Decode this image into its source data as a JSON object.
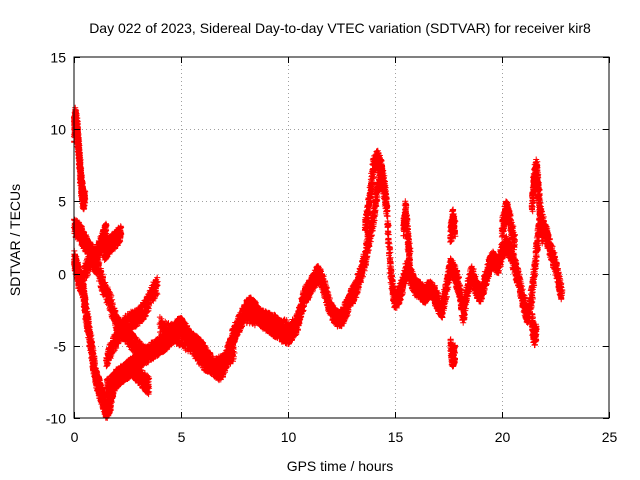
{
  "chart_data": {
    "type": "scatter",
    "title": "Day 022 of 2023, Sidereal Day-to-day VTEC variation (SDTVAR) for receiver kir8",
    "xlabel": "GPS time / hours",
    "ylabel": "SDTVAR / TECUs",
    "xlim": [
      0,
      25
    ],
    "ylim": [
      -10,
      15
    ],
    "xticks": [
      0,
      5,
      10,
      15,
      20,
      25
    ],
    "yticks": [
      -10,
      -5,
      0,
      5,
      10,
      15
    ],
    "grid": true,
    "marker": "+",
    "color": "#ff0000",
    "series": [
      {
        "name": "SDTVAR",
        "tracks": [
          {
            "x": [
              0.0,
              0.1,
              0.2,
              0.3,
              0.4,
              0.5,
              0.6,
              0.7,
              0.8,
              0.9,
              1.0,
              1.1,
              1.2,
              1.3,
              1.4,
              1.5,
              1.6,
              1.7,
              1.8,
              1.9,
              2.0,
              2.2,
              2.4,
              2.6,
              2.8,
              3.0,
              3.2,
              3.4,
              3.6,
              3.8,
              4.0,
              4.2,
              4.4,
              4.6,
              4.8,
              5.0,
              5.2,
              5.4,
              5.6,
              5.8,
              6.0,
              6.2,
              6.4,
              6.6,
              6.8,
              7.0,
              7.2,
              7.4,
              7.6,
              7.8,
              8.0,
              8.2,
              8.4,
              8.6,
              8.8,
              9.0,
              9.2,
              9.4,
              9.6,
              9.8,
              10.0,
              10.2,
              10.4,
              10.6,
              10.8,
              11.0,
              11.2,
              11.4,
              11.6,
              11.8,
              12.0,
              12.2,
              12.4,
              12.6,
              12.8,
              13.0,
              13.2,
              13.4,
              13.6,
              13.8,
              14.0,
              14.2,
              14.4,
              14.6,
              14.8,
              15.0,
              15.2,
              15.4,
              15.6,
              15.8,
              16.0,
              16.2,
              16.4,
              16.6,
              16.8,
              17.0,
              17.2,
              17.4,
              17.6,
              17.8,
              18.0,
              18.2,
              18.4,
              18.6,
              18.8,
              19.0,
              19.2,
              19.4,
              19.6,
              19.8,
              20.0,
              20.2,
              20.4,
              20.6,
              20.8,
              21.0,
              21.2,
              21.4,
              21.6,
              21.8,
              22.0,
              22.2,
              22.4,
              22.6,
              22.8
            ],
            "y": [
              1.0,
              0.5,
              0.0,
              -0.5,
              -1.0,
              -2.0,
              -3.0,
              -4.0,
              -5.0,
              -6.0,
              -7.0,
              -7.5,
              -8.0,
              -8.5,
              -9.0,
              -9.5,
              -9.3,
              -8.8,
              -8.0,
              -7.5,
              -7.2,
              -7.0,
              -6.8,
              -6.5,
              -6.3,
              -6.0,
              -5.8,
              -5.6,
              -5.4,
              -5.2,
              -5.0,
              -4.8,
              -4.6,
              -4.2,
              -3.8,
              -3.6,
              -4.0,
              -4.5,
              -4.8,
              -5.0,
              -5.3,
              -5.8,
              -6.2,
              -6.6,
              -6.8,
              -6.5,
              -5.5,
              -4.5,
              -3.8,
              -3.2,
              -2.5,
              -2.2,
              -2.4,
              -2.8,
              -3.2,
              -3.4,
              -3.6,
              -3.8,
              -4.0,
              -4.2,
              -4.3,
              -4.0,
              -3.5,
              -2.5,
              -1.5,
              -1.0,
              -0.5,
              0.0,
              -0.5,
              -1.5,
              -2.5,
              -3.0,
              -3.2,
              -2.8,
              -2.2,
              -1.5,
              -1.0,
              0.0,
              1.0,
              2.5,
              4.0,
              6.0,
              7.0,
              5.0,
              0.0,
              -2.0,
              -1.5,
              -0.5,
              0.5,
              -0.5,
              -1.0,
              -1.2,
              -1.5,
              -1.0,
              -1.3,
              -2.0,
              -2.5,
              -1.0,
              0.5,
              0.0,
              -1.0,
              -3.0,
              -1.0,
              0.0,
              -1.0,
              -1.5,
              -0.5,
              0.5,
              1.0,
              0.5,
              1.5,
              2.0,
              1.5,
              0.5,
              -0.5,
              -2.0,
              -3.0,
              -1.5,
              1.5,
              4.0,
              3.0,
              2.0,
              1.0,
              0.0,
              -1.5
            ]
          },
          {
            "x": [
              0.0,
              0.05,
              0.1,
              0.15,
              0.2,
              0.25,
              0.3,
              0.35,
              0.4,
              0.45,
              0.5
            ],
            "y": [
              9.5,
              11.0,
              10.5,
              10.0,
              9.0,
              8.0,
              7.0,
              6.0,
              5.5,
              5.0,
              5.2
            ]
          },
          {
            "x": [
              0.0,
              0.2,
              0.4,
              0.6,
              0.8,
              1.0,
              1.2,
              1.4,
              1.5
            ],
            "y": [
              3.2,
              3.0,
              2.5,
              2.0,
              1.5,
              1.0,
              1.8,
              2.6,
              3.0
            ]
          },
          {
            "x": [
              1.4,
              1.6,
              1.8,
              2.0,
              2.2
            ],
            "y": [
              1.5,
              1.8,
              2.2,
              2.5,
              2.8
            ]
          },
          {
            "x": [
              0.2,
              0.5,
              0.8,
              1.1,
              1.4,
              1.7,
              2.0,
              2.3,
              2.6,
              2.9,
              3.2
            ],
            "y": [
              -1.0,
              0.0,
              1.0,
              0.5,
              -1.0,
              -2.0,
              -3.5,
              -4.0,
              -4.5,
              -5.0,
              -5.5
            ]
          },
          {
            "x": [
              1.5,
              1.8,
              2.1,
              2.4,
              2.7,
              3.0,
              3.3,
              3.6,
              3.9
            ],
            "y": [
              -6.0,
              -5.0,
              -4.2,
              -3.5,
              -3.2,
              -3.0,
              -2.5,
              -1.5,
              -0.8
            ]
          },
          {
            "x": [
              1.5,
              1.8,
              2.1,
              2.4,
              2.7,
              3.0,
              3.3,
              3.5
            ],
            "y": [
              -8.0,
              -7.6,
              -7.2,
              -6.8,
              -6.5,
              -7.0,
              -7.5,
              -7.8
            ]
          },
          {
            "x": [
              4.0,
              4.5,
              5.0,
              5.5,
              6.0,
              6.5,
              7.0,
              7.5
            ],
            "y": [
              -3.5,
              -4.0,
              -4.5,
              -5.0,
              -6.0,
              -6.5,
              -6.2,
              -5.5
            ]
          },
          {
            "x": [
              8.0,
              8.5,
              9.0,
              9.5,
              10.0,
              10.5
            ],
            "y": [
              -2.8,
              -3.0,
              -3.2,
              -3.5,
              -3.8,
              -3.6
            ]
          },
          {
            "x": [
              13.6,
              13.8,
              14.0,
              14.2,
              14.4,
              14.6
            ],
            "y": [
              3.0,
              5.0,
              7.5,
              8.0,
              7.0,
              4.5
            ]
          },
          {
            "x": [
              15.4,
              15.5,
              15.6,
              15.7
            ],
            "y": [
              3.0,
              4.5,
              2.5,
              1.0
            ]
          },
          {
            "x": [
              17.6,
              17.7,
              17.8
            ],
            "y": [
              2.5,
              4.0,
              3.0
            ]
          },
          {
            "x": [
              17.6,
              17.7,
              17.8
            ],
            "y": [
              -5.0,
              -6.0,
              -5.5
            ]
          },
          {
            "x": [
              20.0,
              20.2,
              20.4,
              20.6
            ],
            "y": [
              3.0,
              4.5,
              3.5,
              2.0
            ]
          },
          {
            "x": [
              21.4,
              21.5,
              21.6,
              21.7,
              21.8,
              21.9
            ],
            "y": [
              4.5,
              6.5,
              7.5,
              6.0,
              4.0,
              2.5
            ]
          },
          {
            "x": [
              21.4,
              21.5,
              21.6
            ],
            "y": [
              -3.0,
              -4.5,
              -4.0
            ]
          }
        ]
      }
    ]
  }
}
